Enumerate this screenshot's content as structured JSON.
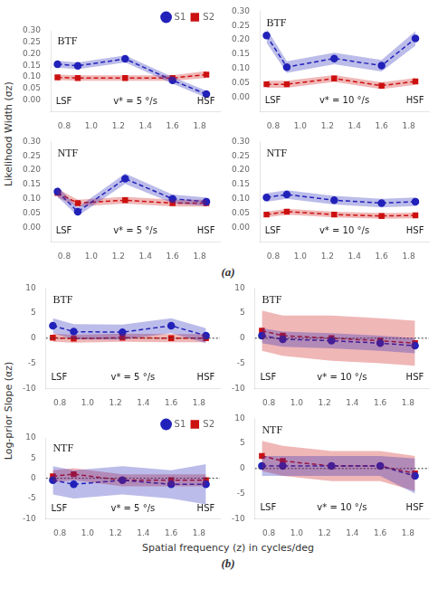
{
  "chart_data": [
    {
      "type": "line",
      "title": "BTF",
      "ylabel": "Likelihood Width (σz)",
      "subtitle": "(a)",
      "annotations": [
        "LSF",
        "v* = 5 °/s",
        "HSF"
      ],
      "legend": "upper right",
      "grid": false,
      "x": [
        0.75,
        0.9,
        1.25,
        1.6,
        1.85
      ],
      "xlim": [
        0.7,
        1.95
      ],
      "xticks": [
        0.8,
        {
          "value": 1.0,
          "label": "1.0"
        },
        1.2,
        1.4,
        1.6,
        1.8
      ],
      "ylim": [
        -0.05,
        0.3
      ],
      "yticks": [
        {
          "value": 0.0,
          "label": "0.00"
        },
        0.05,
        {
          "value": 0.1,
          "label": "0.10"
        },
        0.15,
        {
          "value": 0.2,
          "label": "0.20"
        },
        0.25,
        {
          "value": 0.3,
          "label": "0.30"
        }
      ],
      "series": [
        {
          "name": "S1",
          "color": "#2222BB",
          "marker": "circle",
          "line_style": "dashed",
          "values": [
            0.155,
            0.148,
            0.178,
            0.085,
            0.025
          ],
          "lower": [
            0.14,
            0.133,
            0.163,
            0.07,
            0.01
          ],
          "upper": [
            0.17,
            0.163,
            0.193,
            0.1,
            0.04
          ]
        },
        {
          "name": "S2",
          "color": "#CC1111",
          "marker": "square",
          "line_style": "dashed",
          "values": [
            0.098,
            0.095,
            0.095,
            0.095,
            0.11
          ],
          "lower": [
            0.086,
            0.083,
            0.083,
            0.083,
            0.095
          ],
          "upper": [
            0.11,
            0.107,
            0.107,
            0.107,
            0.125
          ]
        }
      ]
    },
    {
      "type": "line",
      "title": "BTF",
      "annotations": [
        "LSF",
        "v* = 10 °/s",
        "HSF"
      ],
      "grid": false,
      "x": [
        0.75,
        0.9,
        1.25,
        1.6,
        1.85
      ],
      "xlim": [
        0.7,
        1.95
      ],
      "xticks": [
        0.8,
        {
          "value": 1.0,
          "label": "1.0"
        },
        1.2,
        1.4,
        1.6,
        1.8
      ],
      "ylim": [
        -0.05,
        0.3
      ],
      "yticks": [
        {
          "value": 0.0,
          "label": "0.00"
        },
        0.05,
        {
          "value": 0.1,
          "label": "0.10"
        },
        0.15,
        {
          "value": 0.2,
          "label": "0.20"
        },
        0.25,
        {
          "value": 0.3,
          "label": "0.30"
        }
      ],
      "series": [
        {
          "name": "S1",
          "color": "#2222BB",
          "marker": "circle",
          "line_style": "dashed",
          "values": [
            0.215,
            0.105,
            0.135,
            0.11,
            0.205
          ],
          "lower": [
            0.19,
            0.085,
            0.115,
            0.09,
            0.18
          ],
          "upper": [
            0.24,
            0.125,
            0.155,
            0.13,
            0.23
          ]
        },
        {
          "name": "S2",
          "color": "#CC1111",
          "marker": "square",
          "line_style": "dashed",
          "values": [
            0.045,
            0.045,
            0.065,
            0.04,
            0.055
          ],
          "lower": [
            0.033,
            0.033,
            0.053,
            0.028,
            0.043
          ],
          "upper": [
            0.057,
            0.057,
            0.077,
            0.052,
            0.067
          ]
        }
      ]
    },
    {
      "type": "line",
      "title": "NTF",
      "annotations": [
        "LSF",
        "v* = 5 °/s",
        "HSF"
      ],
      "grid": false,
      "x": [
        0.75,
        0.9,
        1.25,
        1.6,
        1.85
      ],
      "xlim": [
        0.7,
        1.95
      ],
      "xticks": [
        0.8,
        {
          "value": 1.0,
          "label": "1.0"
        },
        1.2,
        1.4,
        1.6,
        1.8
      ],
      "ylim": [
        -0.05,
        0.3
      ],
      "yticks": [
        {
          "value": 0.0,
          "label": "0.00"
        },
        0.05,
        {
          "value": 0.1,
          "label": "0.10"
        },
        0.15,
        {
          "value": 0.2,
          "label": "0.20"
        },
        0.25,
        {
          "value": 0.3,
          "label": "0.30"
        }
      ],
      "series": [
        {
          "name": "S1",
          "color": "#2222BB",
          "marker": "circle",
          "line_style": "dashed",
          "values": [
            0.125,
            0.055,
            0.17,
            0.1,
            0.09
          ],
          "lower": [
            0.107,
            0.04,
            0.152,
            0.085,
            0.075
          ],
          "upper": [
            0.143,
            0.07,
            0.188,
            0.115,
            0.105
          ]
        },
        {
          "name": "S2",
          "color": "#CC1111",
          "marker": "square",
          "line_style": "dashed",
          "values": [
            0.12,
            0.085,
            0.095,
            0.085,
            0.085
          ],
          "lower": [
            0.105,
            0.073,
            0.083,
            0.073,
            0.073
          ],
          "upper": [
            0.135,
            0.097,
            0.107,
            0.097,
            0.097
          ]
        }
      ]
    },
    {
      "type": "line",
      "title": "NTF",
      "annotations": [
        "LSF",
        "v* = 10 °/s",
        "HSF"
      ],
      "grid": false,
      "x": [
        0.75,
        0.9,
        1.25,
        1.6,
        1.85
      ],
      "xlim": [
        0.7,
        1.95
      ],
      "xticks": [
        0.8,
        {
          "value": 1.0,
          "label": "1.0"
        },
        1.2,
        1.4,
        1.6,
        1.8
      ],
      "ylim": [
        -0.05,
        0.3
      ],
      "yticks": [
        {
          "value": 0.0,
          "label": "0.00"
        },
        0.05,
        {
          "value": 0.1,
          "label": "0.10"
        },
        0.15,
        {
          "value": 0.2,
          "label": "0.20"
        },
        0.25,
        {
          "value": 0.3,
          "label": "0.30"
        }
      ],
      "series": [
        {
          "name": "S1",
          "color": "#2222BB",
          "marker": "circle",
          "line_style": "dashed",
          "values": [
            0.105,
            0.115,
            0.095,
            0.085,
            0.09
          ],
          "lower": [
            0.09,
            0.1,
            0.08,
            0.07,
            0.075
          ],
          "upper": [
            0.12,
            0.13,
            0.11,
            0.1,
            0.105
          ]
        },
        {
          "name": "S2",
          "color": "#CC1111",
          "marker": "square",
          "line_style": "dashed",
          "values": [
            0.045,
            0.055,
            0.045,
            0.04,
            0.042
          ],
          "lower": [
            0.035,
            0.045,
            0.035,
            0.03,
            0.032
          ],
          "upper": [
            0.055,
            0.065,
            0.055,
            0.05,
            0.052
          ]
        }
      ]
    },
    {
      "type": "line",
      "title": "BTF",
      "ylabel": "Log-prior Slope (αz)",
      "xlabel": "Spatial frequency (z) in cycles/deg",
      "subtitle": "(b)",
      "annotations": [
        "LSF",
        "v* = 5 °/s",
        "HSF"
      ],
      "grid": false,
      "hline": 0,
      "x": [
        0.75,
        0.9,
        1.25,
        1.6,
        1.85
      ],
      "xlim": [
        0.7,
        1.95
      ],
      "xticks": [
        0.8,
        {
          "value": 1.0,
          "label": "1.0"
        },
        1.2,
        1.4,
        1.6,
        1.8
      ],
      "ylim": [
        -10,
        10
      ],
      "yticks": [
        -10,
        -5,
        0,
        5,
        10
      ],
      "series": [
        {
          "name": "S1",
          "color": "#2222BB",
          "marker": "circle",
          "line_style": "dashed",
          "values": [
            2.5,
            1.3,
            1.2,
            2.5,
            0.5
          ],
          "lower": [
            1.0,
            -0.2,
            -0.3,
            1.0,
            -1.0
          ],
          "upper": [
            4.0,
            2.8,
            2.7,
            4.0,
            2.0
          ]
        },
        {
          "name": "S2",
          "color": "#CC1111",
          "marker": "square",
          "line_style": "dashed",
          "values": [
            0.1,
            -0.1,
            0.1,
            0.0,
            0.0
          ],
          "lower": [
            -0.7,
            -0.9,
            -0.7,
            -0.8,
            -0.8
          ],
          "upper": [
            0.9,
            0.7,
            0.9,
            0.8,
            0.8
          ]
        }
      ]
    },
    {
      "type": "line",
      "title": "BTF",
      "annotations": [
        "LSF",
        "v* = 10 °/s",
        "HSF"
      ],
      "grid": false,
      "hline": 0,
      "x": [
        0.75,
        0.9,
        1.25,
        1.6,
        1.85
      ],
      "xlim": [
        0.7,
        1.95
      ],
      "xticks": [
        0.8,
        {
          "value": 1.0,
          "label": "1.0"
        },
        1.2,
        1.4,
        1.6,
        1.8
      ],
      "ylim": [
        -10,
        10
      ],
      "yticks": [
        -10,
        -5,
        0,
        5,
        10
      ],
      "series": [
        {
          "name": "S1",
          "color": "#2222BB",
          "marker": "circle",
          "line_style": "dashed",
          "values": [
            0.5,
            -0.2,
            -0.5,
            -1.0,
            -1.5
          ],
          "lower": [
            -1.0,
            -1.7,
            -2.0,
            -2.5,
            -3.0
          ],
          "upper": [
            2.0,
            1.3,
            1.0,
            0.5,
            0.0
          ]
        },
        {
          "name": "S2",
          "color": "#CC1111",
          "marker": "square",
          "line_style": "dashed",
          "values": [
            1.5,
            0.5,
            0.0,
            -0.5,
            -1.0
          ],
          "lower": [
            -2.5,
            -3.5,
            -4.5,
            -5.0,
            -5.5
          ],
          "upper": [
            5.5,
            4.5,
            4.5,
            4.0,
            3.5
          ]
        }
      ]
    },
    {
      "type": "line",
      "title": "NTF",
      "annotations": [
        "LSF",
        "v* = 5 °/s",
        "HSF"
      ],
      "legend": "upper right",
      "grid": false,
      "hline": 0,
      "x": [
        0.75,
        0.9,
        1.25,
        1.6,
        1.85
      ],
      "xlim": [
        0.7,
        1.95
      ],
      "xticks": [
        0.8,
        {
          "value": 1.0,
          "label": "1.0"
        },
        1.2,
        1.4,
        1.6,
        1.8
      ],
      "ylim": [
        -10,
        10
      ],
      "yticks": [
        -10,
        -5,
        0,
        5,
        10
      ],
      "series": [
        {
          "name": "S1",
          "color": "#2222BB",
          "marker": "circle",
          "line_style": "dashed",
          "values": [
            -0.5,
            -1.5,
            -0.5,
            -1.5,
            -1.5
          ],
          "lower": [
            -4.0,
            -5.0,
            -4.0,
            -5.0,
            -6.5
          ],
          "upper": [
            3.0,
            2.0,
            3.0,
            2.0,
            3.5
          ]
        },
        {
          "name": "S2",
          "color": "#CC1111",
          "marker": "square",
          "line_style": "dashed",
          "values": [
            0.5,
            1.0,
            -0.5,
            -0.5,
            -0.5
          ],
          "lower": [
            -1.0,
            -0.5,
            -2.0,
            -2.0,
            -2.0
          ],
          "upper": [
            2.0,
            2.5,
            1.0,
            1.0,
            1.0
          ]
        }
      ]
    },
    {
      "type": "line",
      "title": "NTF",
      "annotations": [
        "LSF",
        "v* = 10 °/s",
        "HSF"
      ],
      "grid": false,
      "hline": 0,
      "x": [
        0.75,
        0.9,
        1.25,
        1.6,
        1.85
      ],
      "xlim": [
        0.7,
        1.95
      ],
      "xticks": [
        0.8,
        {
          "value": 1.0,
          "label": "1.0"
        },
        1.2,
        1.4,
        1.6,
        1.8
      ],
      "ylim": [
        -10,
        10
      ],
      "yticks": [
        -10,
        -5,
        0,
        5,
        10
      ],
      "series": [
        {
          "name": "S1",
          "color": "#2222BB",
          "marker": "circle",
          "line_style": "dashed",
          "values": [
            0.5,
            0.5,
            0.5,
            0.5,
            -1.5
          ],
          "lower": [
            -1.5,
            -1.5,
            -1.5,
            -1.5,
            -5.0
          ],
          "upper": [
            2.5,
            2.5,
            2.5,
            2.5,
            2.0
          ]
        },
        {
          "name": "S2",
          "color": "#CC1111",
          "marker": "square",
          "line_style": "dashed",
          "values": [
            2.5,
            1.5,
            0.5,
            0.5,
            -1.0
          ],
          "lower": [
            -0.5,
            -1.5,
            -2.5,
            -2.5,
            -4.5
          ],
          "upper": [
            5.5,
            4.5,
            3.5,
            3.5,
            2.5
          ]
        }
      ]
    }
  ]
}
